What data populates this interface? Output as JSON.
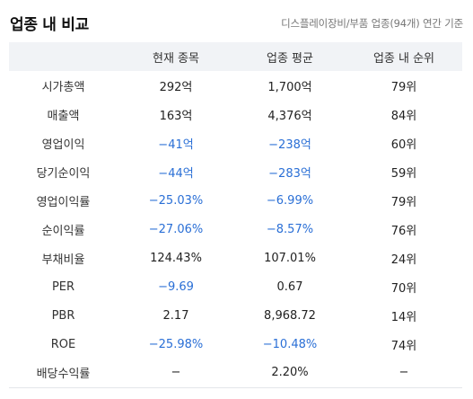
{
  "header": {
    "title": "업종 내 비교",
    "subtitle": "디스플레이장비/부품 업종(94개) 연간 기준"
  },
  "columns": [
    "",
    "현재 종목",
    "업종 평균",
    "업종 내 순위"
  ],
  "rows": [
    {
      "label": "시가총액",
      "current": "292억",
      "average": "1,700억",
      "rank": "79위",
      "current_negative": false,
      "average_negative": false
    },
    {
      "label": "매출액",
      "current": "163억",
      "average": "4,376억",
      "rank": "84위",
      "current_negative": false,
      "average_negative": false
    },
    {
      "label": "영업이익",
      "current": "−41억",
      "average": "−238억",
      "rank": "60위",
      "current_negative": true,
      "average_negative": true
    },
    {
      "label": "당기순이익",
      "current": "−44억",
      "average": "−283억",
      "rank": "59위",
      "current_negative": true,
      "average_negative": true
    },
    {
      "label": "영업이익률",
      "current": "−25.03%",
      "average": "−6.99%",
      "rank": "79위",
      "current_negative": true,
      "average_negative": true
    },
    {
      "label": "순이익률",
      "current": "−27.06%",
      "average": "−8.57%",
      "rank": "76위",
      "current_negative": true,
      "average_negative": true
    },
    {
      "label": "부채비율",
      "current": "124.43%",
      "average": "107.01%",
      "rank": "24위",
      "current_negative": false,
      "average_negative": false
    },
    {
      "label": "PER",
      "current": "−9.69",
      "average": "0.67",
      "rank": "70위",
      "current_negative": true,
      "average_negative": false
    },
    {
      "label": "PBR",
      "current": "2.17",
      "average": "8,968.72",
      "rank": "14위",
      "current_negative": false,
      "average_negative": false
    },
    {
      "label": "ROE",
      "current": "−25.98%",
      "average": "−10.48%",
      "rank": "74위",
      "current_negative": true,
      "average_negative": true
    },
    {
      "label": "배당수익률",
      "current": "−",
      "average": "2.20%",
      "rank": "−",
      "current_negative": false,
      "average_negative": false
    }
  ],
  "colors": {
    "negative": "#2a6fd6",
    "header_background": "#f1f3f6"
  }
}
